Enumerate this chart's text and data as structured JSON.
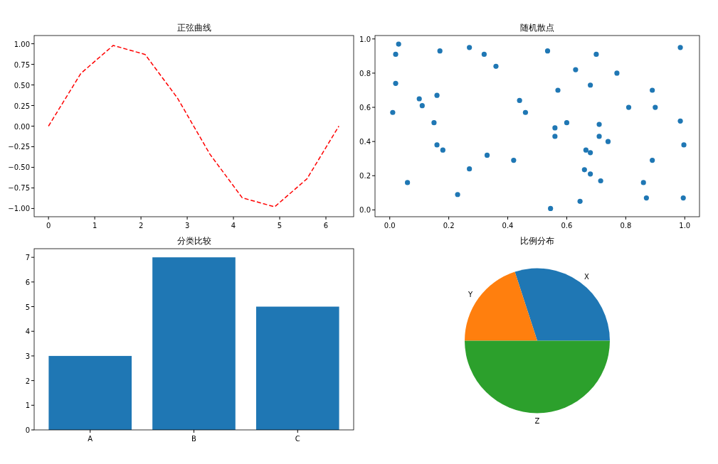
{
  "chart_data": [
    {
      "type": "line",
      "title": "正弦曲线",
      "line_style": "dashed",
      "color": "#ff0000",
      "x": [
        0,
        0.7,
        1.4,
        2.09,
        2.79,
        3.49,
        4.19,
        4.89,
        5.59,
        6.28
      ],
      "values": [
        0,
        0.64,
        0.98,
        0.87,
        0.34,
        -0.34,
        -0.87,
        -0.98,
        -0.64,
        0
      ],
      "xlim": [
        -0.31,
        6.6
      ],
      "ylim": [
        -1.1,
        1.1
      ],
      "xticks": [
        0,
        1,
        2,
        3,
        4,
        5,
        6
      ],
      "yticks": [
        {
          "value": -1,
          "label": "−1.00"
        },
        {
          "value": -0.75,
          "label": "−0.75"
        },
        {
          "value": -0.5,
          "label": "−0.50"
        },
        {
          "value": -0.25,
          "label": "−0.25"
        },
        {
          "value": 0,
          "label": "0.00"
        },
        {
          "value": 0.25,
          "label": "0.25"
        },
        {
          "value": 0.5,
          "label": "0.50"
        },
        {
          "value": 0.75,
          "label": "0.75"
        },
        {
          "value": 1,
          "label": "1.00"
        }
      ]
    },
    {
      "type": "scatter",
      "title": "随机散点",
      "marker": "circle",
      "color": "#1f77b4",
      "x": [
        0.01,
        0.02,
        0.03,
        0.02,
        0.06,
        0.1,
        0.11,
        0.15,
        0.16,
        0.16,
        0.18,
        0.17,
        0.23,
        0.27,
        0.27,
        0.32,
        0.33,
        0.36,
        0.42,
        0.44,
        0.46,
        0.535,
        0.7,
        0.63,
        0.77,
        0.68,
        0.57,
        0.89,
        0.81,
        0.9,
        0.985,
        0.6,
        0.56,
        0.71,
        0.985,
        0.56,
        0.71,
        0.74,
        0.997,
        0.665,
        0.68,
        0.89,
        0.66,
        0.68,
        0.715,
        0.86,
        0.645,
        0.87,
        0.995,
        0.545
      ],
      "values": [
        0.57,
        0.91,
        0.97,
        0.74,
        0.16,
        0.65,
        0.61,
        0.51,
        0.67,
        0.38,
        0.35,
        0.93,
        0.09,
        0.24,
        0.95,
        0.91,
        0.32,
        0.84,
        0.29,
        0.64,
        0.57,
        0.93,
        0.91,
        0.82,
        0.8,
        0.73,
        0.7,
        0.7,
        0.6,
        0.6,
        0.95,
        0.51,
        0.48,
        0.5,
        0.52,
        0.43,
        0.43,
        0.4,
        0.38,
        0.35,
        0.335,
        0.29,
        0.235,
        0.21,
        0.17,
        0.16,
        0.05,
        0.07,
        0.07,
        0.008
      ],
      "xlim": [
        -0.05,
        1.05
      ],
      "ylim": [
        -0.04,
        1.02
      ],
      "xticks": [
        {
          "value": 0,
          "label": "0.0"
        },
        {
          "value": 0.2,
          "label": "0.2"
        },
        {
          "value": 0.4,
          "label": "0.4"
        },
        {
          "value": 0.6,
          "label": "0.6"
        },
        {
          "value": 0.8,
          "label": "0.8"
        },
        {
          "value": 1,
          "label": "1.0"
        }
      ],
      "yticks": [
        {
          "value": 0,
          "label": "0.0"
        },
        {
          "value": 0.2,
          "label": "0.2"
        },
        {
          "value": 0.4,
          "label": "0.4"
        },
        {
          "value": 0.6,
          "label": "0.6"
        },
        {
          "value": 0.8,
          "label": "0.8"
        },
        {
          "value": 1,
          "label": "1.0"
        }
      ]
    },
    {
      "type": "bar",
      "title": "分类比较",
      "categories": [
        "A",
        "B",
        "C"
      ],
      "values": [
        3,
        7,
        5
      ],
      "color": "#1f77b4",
      "ylim": [
        0,
        7.35
      ],
      "yticks": [
        0,
        1,
        2,
        3,
        4,
        5,
        6,
        7
      ]
    },
    {
      "type": "pie",
      "title": "比例分布",
      "categories": [
        "X",
        "Y",
        "Z"
      ],
      "values": [
        30,
        20,
        50
      ],
      "colors": [
        "#1f77b4",
        "#ff7f0e",
        "#2ca02c"
      ]
    }
  ]
}
